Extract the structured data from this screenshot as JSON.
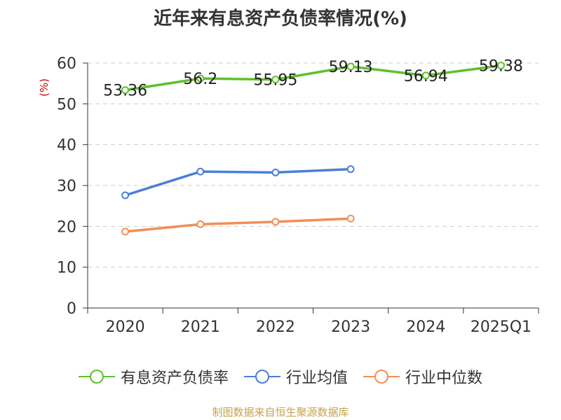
{
  "chart_data": {
    "type": "line",
    "title": "近年来有息资产负债率情况(%)",
    "ylabel": "(%)",
    "xlabel": "",
    "categories": [
      "2020",
      "2021",
      "2022",
      "2023",
      "2024",
      "2025Q1"
    ],
    "ylim": [
      0,
      60
    ],
    "yticks": [
      0,
      10,
      20,
      30,
      40,
      50,
      60
    ],
    "grid": true,
    "legend_position": "bottom",
    "series": [
      {
        "name": "有息资产负债率",
        "color": "#5ec02b",
        "values": [
          53.36,
          56.2,
          55.95,
          59.13,
          56.94,
          59.38
        ],
        "labels": [
          "53.36",
          "56.2",
          "55.95",
          "59.13",
          "56.94",
          "59.38"
        ]
      },
      {
        "name": "行业均值",
        "color": "#4a7fd8",
        "values": [
          27.6,
          33.4,
          33.2,
          34.0,
          null,
          null
        ]
      },
      {
        "name": "行业中位数",
        "color": "#f28e56",
        "values": [
          18.7,
          20.5,
          21.1,
          21.9,
          null,
          null
        ]
      }
    ]
  },
  "source": "制图数据来自恒生聚源数据库"
}
